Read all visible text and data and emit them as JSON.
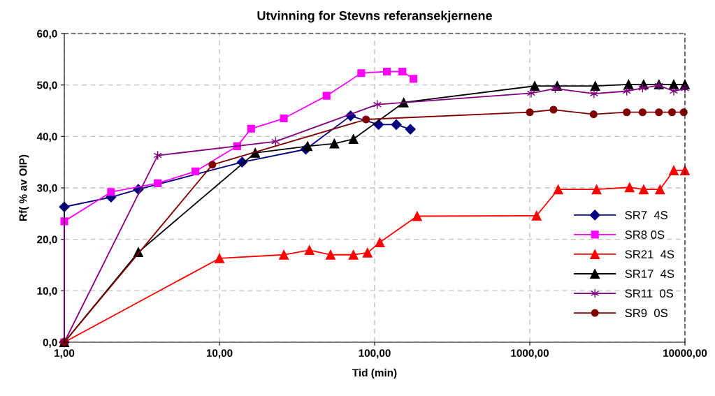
{
  "chart_data": {
    "type": "line",
    "title": "Utvinning for Stevns referansekjernene",
    "xlabel": "Tid (min)",
    "ylabel": "Rf( % av OIP)",
    "log": "x",
    "xlim": [
      1,
      10000
    ],
    "xticks": [
      {
        "value": 1,
        "label": "1,00"
      },
      {
        "value": 10,
        "label": "10,00"
      },
      {
        "value": 100,
        "label": "100,00"
      },
      {
        "value": 1000,
        "label": "1000,00"
      },
      {
        "value": 10000,
        "label": "10000,00"
      }
    ],
    "ylim": [
      0,
      60
    ],
    "yticks": [
      {
        "value": 0,
        "label": "0,0"
      },
      {
        "value": 10,
        "label": "10,0"
      },
      {
        "value": 20,
        "label": "20,0"
      },
      {
        "value": 30,
        "label": "30,0"
      },
      {
        "value": 40,
        "label": "40,0"
      },
      {
        "value": 50,
        "label": "50,0"
      },
      {
        "value": 60,
        "label": "60,0"
      }
    ],
    "grid": true,
    "legend": "right",
    "line_style": "solid",
    "series": [
      {
        "name": "SR7  4S",
        "color": "#000080",
        "marker": "diamond",
        "x": [
          1,
          1,
          2,
          3,
          14,
          36,
          70,
          106,
          138,
          170
        ],
        "values": [
          0,
          26.3,
          28.2,
          29.7,
          35.0,
          37.5,
          44.0,
          42.3,
          42.3,
          41.4
        ]
      },
      {
        "name": "SR8 0S",
        "color": "#ff00ff",
        "marker": "square",
        "x": [
          1,
          1,
          2,
          4,
          7,
          13,
          16,
          26,
          49,
          82,
          120,
          151,
          178
        ],
        "values": [
          0,
          23.5,
          29.2,
          30.9,
          33.2,
          38.1,
          41.5,
          43.5,
          47.9,
          52.3,
          52.6,
          52.6,
          51.2
        ]
      },
      {
        "name": "SR21  4S",
        "color": "#ff0000",
        "marker": "triangle",
        "x": [
          1,
          10,
          26,
          38,
          52,
          73,
          90,
          108,
          188,
          1106,
          1524,
          2694,
          4396,
          5420,
          6905,
          8470,
          10000
        ],
        "values": [
          0,
          16.3,
          17.0,
          17.9,
          17.0,
          17.0,
          17.4,
          19.4,
          24.5,
          24.6,
          29.7,
          29.7,
          30.1,
          29.7,
          29.7,
          33.4,
          33.4
        ]
      },
      {
        "name": "SR17  4S",
        "color": "#000000",
        "marker": "triangle",
        "x": [
          1,
          3,
          17,
          37,
          55,
          73,
          154,
          1076,
          1502,
          2642,
          4335,
          5420,
          6800,
          8470,
          10000
        ],
        "values": [
          0,
          17.5,
          36.8,
          38.1,
          38.6,
          39.5,
          46.6,
          49.8,
          49.8,
          49.8,
          50.1,
          50.1,
          50.1,
          50.1,
          50.1
        ]
      },
      {
        "name": "SR11  0S",
        "color": "#800080",
        "marker": "cross",
        "x": [
          1,
          4,
          23,
          104,
          1021,
          1459,
          2594,
          4217,
          5330,
          6790,
          8470,
          10000
        ],
        "values": [
          0,
          36.3,
          39.0,
          46.2,
          48.4,
          49.3,
          48.3,
          48.8,
          49.4,
          49.9,
          48.8,
          49.3
        ]
      },
      {
        "name": "SR9  0S",
        "color": "#800000",
        "marker": "circle",
        "x": [
          1,
          9,
          88,
          1000,
          1422,
          2577,
          4217,
          5330,
          6790,
          8260,
          9820
        ],
        "values": [
          0,
          34.5,
          43.3,
          44.7,
          45.2,
          44.3,
          44.7,
          44.7,
          44.7,
          44.7,
          44.7
        ]
      }
    ]
  }
}
